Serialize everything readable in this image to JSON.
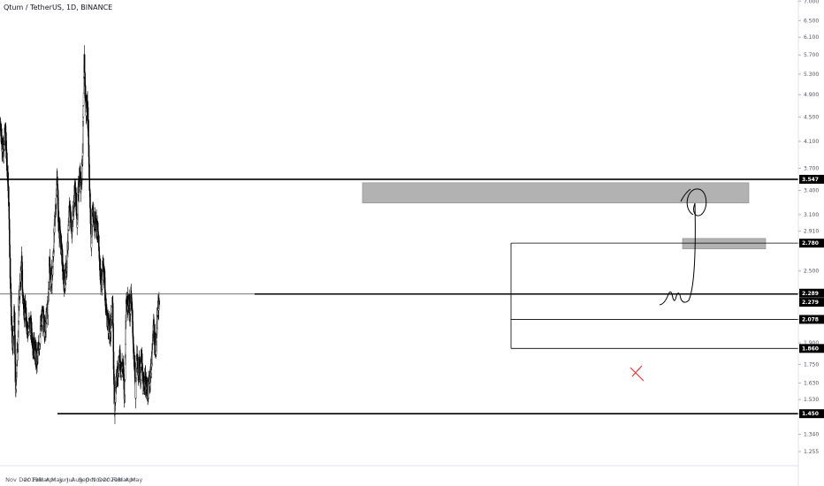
{
  "header": {
    "title": "Qtum / TetherUS, 1D, BINANCE"
  },
  "chart_data": {
    "type": "candlestick",
    "symbol": "Qtum / TetherUS",
    "interval": "1D",
    "exchange": "BINANCE",
    "scale": "log",
    "ylim": [
      1.19,
      7.0
    ],
    "y_ticks": [
      "7.000",
      "6.500",
      "6.100",
      "5.700",
      "5.300",
      "4.900",
      "4.500",
      "4.100",
      "3.700",
      "3.400",
      "3.100",
      "2.910",
      "2.780",
      "2.500",
      "2.300",
      "2.078",
      "1.900",
      "1.750",
      "1.630",
      "1.530",
      "1.450",
      "1.340",
      "1.255"
    ],
    "x_ticks": [
      "Nov",
      "Dec",
      "2019",
      "Feb",
      "Mar",
      "Apr",
      "May",
      "Jun",
      "Jul",
      "Aug",
      "Sep",
      "Oct",
      "Nov",
      "Dec",
      "2020",
      "Feb",
      "Mar",
      "Apr",
      "May"
    ],
    "price_tags": [
      {
        "label": "3.547",
        "value": 3.547
      },
      {
        "label": "2.780",
        "value": 2.78
      },
      {
        "label": "2.289",
        "value": 2.289
      },
      {
        "label": "2.279",
        "value": 2.279
      },
      {
        "label": "2.078",
        "value": 2.078
      },
      {
        "label": "1.860",
        "value": 1.86
      },
      {
        "label": "1.450",
        "value": 1.45
      }
    ],
    "anchors": [
      {
        "d": 0,
        "p": 4.4
      },
      {
        "d": 8,
        "p": 4.05
      },
      {
        "d": 15,
        "p": 3.9
      },
      {
        "d": 22,
        "p": 4.3
      },
      {
        "d": 30,
        "p": 3.8
      },
      {
        "d": 38,
        "p": 3.3
      },
      {
        "d": 45,
        "p": 2.5
      },
      {
        "d": 52,
        "p": 2.0
      },
      {
        "d": 58,
        "p": 1.85
      },
      {
        "d": 64,
        "p": 2.2
      },
      {
        "d": 68,
        "p": 1.7
      },
      {
        "d": 71,
        "p": 1.55
      },
      {
        "d": 74,
        "p": 1.75
      },
      {
        "d": 80,
        "p": 1.9
      },
      {
        "d": 86,
        "p": 2.25
      },
      {
        "d": 92,
        "p": 2.4
      },
      {
        "d": 98,
        "p": 2.6
      },
      {
        "d": 102,
        "p": 2.3
      },
      {
        "d": 110,
        "p": 2.15
      },
      {
        "d": 118,
        "p": 2.1
      },
      {
        "d": 126,
        "p": 2.0
      },
      {
        "d": 134,
        "p": 2.05
      },
      {
        "d": 142,
        "p": 2.0
      },
      {
        "d": 150,
        "p": 1.9
      },
      {
        "d": 158,
        "p": 1.85
      },
      {
        "d": 166,
        "p": 1.78
      },
      {
        "d": 172,
        "p": 1.8
      },
      {
        "d": 180,
        "p": 1.92
      },
      {
        "d": 188,
        "p": 2.05
      },
      {
        "d": 196,
        "p": 2.1
      },
      {
        "d": 204,
        "p": 2.0
      },
      {
        "d": 212,
        "p": 2.1
      },
      {
        "d": 220,
        "p": 2.2
      },
      {
        "d": 226,
        "p": 2.6
      },
      {
        "d": 232,
        "p": 2.4
      },
      {
        "d": 240,
        "p": 2.5
      },
      {
        "d": 248,
        "p": 2.9
      },
      {
        "d": 256,
        "p": 3.3
      },
      {
        "d": 262,
        "p": 3.6
      },
      {
        "d": 266,
        "p": 3.1
      },
      {
        "d": 272,
        "p": 2.9
      },
      {
        "d": 280,
        "p": 2.75
      },
      {
        "d": 288,
        "p": 2.5
      },
      {
        "d": 294,
        "p": 2.35
      },
      {
        "d": 300,
        "p": 2.5
      },
      {
        "d": 306,
        "p": 2.55
      },
      {
        "d": 312,
        "p": 2.9
      },
      {
        "d": 318,
        "p": 3.2
      },
      {
        "d": 324,
        "p": 3.05
      },
      {
        "d": 330,
        "p": 2.9
      },
      {
        "d": 336,
        "p": 3.2
      },
      {
        "d": 342,
        "p": 3.4
      },
      {
        "d": 348,
        "p": 3.3
      },
      {
        "d": 352,
        "p": 3.0
      },
      {
        "d": 358,
        "p": 3.35
      },
      {
        "d": 364,
        "p": 3.6
      },
      {
        "d": 370,
        "p": 3.5
      },
      {
        "d": 376,
        "p": 3.7
      },
      {
        "d": 382,
        "p": 4.6
      },
      {
        "d": 386,
        "p": 5.6
      },
      {
        "d": 390,
        "p": 5.0
      },
      {
        "d": 394,
        "p": 4.6
      },
      {
        "d": 398,
        "p": 4.8
      },
      {
        "d": 404,
        "p": 4.4
      },
      {
        "d": 410,
        "p": 3.5
      },
      {
        "d": 414,
        "p": 3.1
      },
      {
        "d": 418,
        "p": 2.8
      },
      {
        "d": 424,
        "p": 3.2
      },
      {
        "d": 430,
        "p": 2.95
      },
      {
        "d": 436,
        "p": 3.05
      },
      {
        "d": 442,
        "p": 3.0
      },
      {
        "d": 448,
        "p": 2.9
      },
      {
        "d": 454,
        "p": 2.7
      },
      {
        "d": 460,
        "p": 2.5
      },
      {
        "d": 466,
        "p": 2.35
      },
      {
        "d": 472,
        "p": 2.55
      },
      {
        "d": 478,
        "p": 2.5
      },
      {
        "d": 484,
        "p": 2.2
      },
      {
        "d": 490,
        "p": 2.1
      },
      {
        "d": 496,
        "p": 2.05
      },
      {
        "d": 502,
        "p": 1.98
      },
      {
        "d": 508,
        "p": 2.0
      },
      {
        "d": 514,
        "p": 2.2
      },
      {
        "d": 518,
        "p": 2.1
      },
      {
        "d": 522,
        "p": 1.65
      },
      {
        "d": 526,
        "p": 1.48
      },
      {
        "d": 532,
        "p": 1.62
      },
      {
        "d": 538,
        "p": 1.7
      },
      {
        "d": 544,
        "p": 1.74
      },
      {
        "d": 550,
        "p": 1.8
      },
      {
        "d": 556,
        "p": 1.72
      },
      {
        "d": 562,
        "p": 1.75
      },
      {
        "d": 568,
        "p": 1.65
      },
      {
        "d": 571,
        "p": 1.55
      },
      {
        "d": 575,
        "p": 1.82
      },
      {
        "d": 579,
        "p": 2.3
      },
      {
        "d": 584,
        "p": 2.2
      },
      {
        "d": 590,
        "p": 2.25
      },
      {
        "d": 596,
        "p": 2.15
      },
      {
        "d": 602,
        "p": 2.25
      },
      {
        "d": 607,
        "p": 2.1
      },
      {
        "d": 612,
        "p": 1.9
      },
      {
        "d": 618,
        "p": 1.7
      },
      {
        "d": 622,
        "p": 1.55
      },
      {
        "d": 626,
        "p": 1.8
      },
      {
        "d": 632,
        "p": 1.72
      },
      {
        "d": 638,
        "p": 1.75
      },
      {
        "d": 644,
        "p": 1.68
      },
      {
        "d": 650,
        "p": 1.8
      },
      {
        "d": 656,
        "p": 1.6
      },
      {
        "d": 662,
        "p": 1.65
      },
      {
        "d": 668,
        "p": 1.63
      },
      {
        "d": 674,
        "p": 1.6
      },
      {
        "d": 680,
        "p": 1.58
      },
      {
        "d": 686,
        "p": 1.65
      },
      {
        "d": 692,
        "p": 1.72
      },
      {
        "d": 698,
        "p": 1.8
      },
      {
        "d": 703,
        "p": 2.05
      },
      {
        "d": 708,
        "p": 1.95
      },
      {
        "d": 712,
        "p": 1.9
      },
      {
        "d": 716,
        "p": 1.88
      },
      {
        "d": 720,
        "p": 2.0
      },
      {
        "d": 724,
        "p": 2.12
      },
      {
        "d": 728,
        "p": 2.2
      },
      {
        "d": 731,
        "p": 2.27
      }
    ]
  }
}
